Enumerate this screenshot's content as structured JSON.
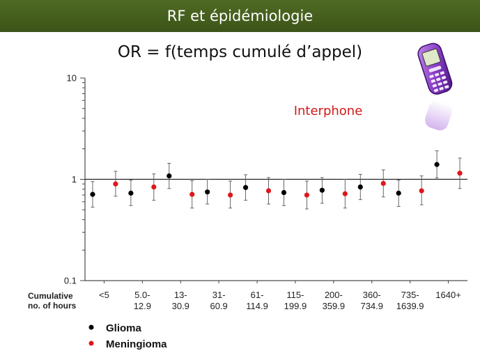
{
  "banner": {
    "title": "RF et épidémiologie"
  },
  "subtitle": "OR = f(temps cumulé d’appel)",
  "icons": {
    "phone": "mobile-phone-icon"
  },
  "chart_data": {
    "type": "scatter",
    "title": "",
    "xlabel": "Cumulative no. of hours",
    "xlabel_lines": [
      "Cumulative",
      "no. of hours"
    ],
    "ylabel": "",
    "ylim": [
      0.1,
      10
    ],
    "yscale": "log",
    "yticks": [
      "10",
      "1",
      "0.1"
    ],
    "reference_line": 1,
    "annotation": "Interphone",
    "categories": [
      [
        "<5"
      ],
      [
        "5.0-",
        "12.9"
      ],
      [
        "13-",
        "30.9"
      ],
      [
        "31-",
        "60.9"
      ],
      [
        "61-",
        "114.9"
      ],
      [
        "115-",
        "199.9"
      ],
      [
        "200-",
        "359.9"
      ],
      [
        "360-",
        "734.9"
      ],
      [
        "735-",
        "1639.9"
      ],
      [
        "1640+"
      ]
    ],
    "series": [
      {
        "name": "Glioma",
        "color": "#000000",
        "values": [
          0.71,
          0.73,
          1.08,
          0.75,
          0.83,
          0.74,
          0.78,
          0.84,
          0.73,
          1.4
        ],
        "lower": [
          0.53,
          0.55,
          0.81,
          0.57,
          0.62,
          0.55,
          0.58,
          0.63,
          0.54,
          1.03
        ],
        "upper": [
          0.95,
          0.98,
          1.44,
          1.0,
          1.11,
          1.0,
          1.04,
          1.12,
          0.98,
          1.91
        ]
      },
      {
        "name": "Meningioma",
        "color": "#e0161b",
        "values": [
          0.9,
          0.84,
          0.71,
          0.7,
          0.77,
          0.7,
          0.72,
          0.91,
          0.77,
          1.15
        ],
        "lower": [
          0.68,
          0.62,
          0.52,
          0.52,
          0.57,
          0.51,
          0.52,
          0.67,
          0.56,
          0.81
        ],
        "upper": [
          1.2,
          1.13,
          0.97,
          0.96,
          1.04,
          0.96,
          1.0,
          1.24,
          1.08,
          1.62
        ]
      }
    ],
    "legend": {
      "position": "bottom-left"
    },
    "grid": false
  }
}
